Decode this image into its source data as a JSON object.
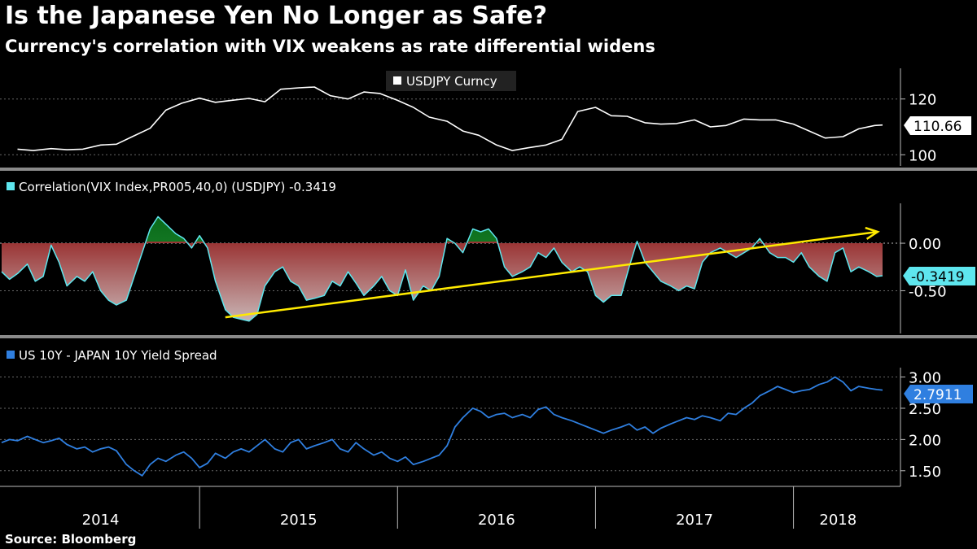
{
  "header": {
    "title": "Is the Japanese Yen No Longer as Safe?",
    "subtitle": "Currency's correlation with VIX weakens as rate differential widens"
  },
  "footer": {
    "source": "Source: Bloomberg"
  },
  "colors": {
    "background": "#000000",
    "usdjpy_line": "#ffffff",
    "correlation_line": "#5ee6ee",
    "correlation_neg_fill": "#8b0a0a",
    "correlation_pos_fill": "#1e8a2a",
    "trend_arrow": "#ffea00",
    "spread_line": "#2f7fe0",
    "grid": "#666666"
  },
  "chart_data": [
    {
      "type": "line",
      "panel": "top",
      "legend": "USDJPY Curncy",
      "last_value_label": "110.66",
      "y_ticks": [
        "120",
        "100"
      ],
      "ylim": [
        96,
        131
      ],
      "x_ticks": [
        "2014",
        "2015",
        "2016",
        "2017",
        "2018"
      ],
      "series": [
        {
          "name": "USDJPY Curncy",
          "x": [
            2014.08,
            2014.16,
            2014.25,
            2014.33,
            2014.41,
            2014.5,
            2014.58,
            2014.66,
            2014.75,
            2014.83,
            2014.91,
            2015.0,
            2015.08,
            2015.16,
            2015.25,
            2015.33,
            2015.41,
            2015.5,
            2015.58,
            2015.66,
            2015.75,
            2015.83,
            2015.91,
            2016.0,
            2016.08,
            2016.16,
            2016.25,
            2016.33,
            2016.41,
            2016.5,
            2016.58,
            2016.66,
            2016.75,
            2016.83,
            2016.91,
            2017.0,
            2017.08,
            2017.16,
            2017.25,
            2017.33,
            2017.41,
            2017.5,
            2017.58,
            2017.66,
            2017.75,
            2017.83,
            2017.91,
            2018.0,
            2018.08,
            2018.16,
            2018.25,
            2018.33,
            2018.41,
            2018.45
          ],
          "y": [
            102.0,
            101.5,
            102.2,
            101.8,
            102.0,
            103.5,
            103.8,
            106.5,
            109.5,
            116.0,
            118.5,
            120.3,
            118.8,
            119.5,
            120.2,
            119.0,
            123.5,
            124.0,
            124.3,
            121.2,
            120.0,
            122.5,
            122.0,
            119.5,
            117.0,
            113.5,
            112.0,
            108.5,
            107.0,
            103.5,
            101.5,
            102.5,
            103.5,
            105.5,
            115.5,
            117.0,
            114.0,
            113.8,
            111.5,
            111.0,
            111.2,
            112.5,
            110.0,
            110.5,
            112.8,
            112.5,
            112.5,
            111.0,
            108.5,
            106.0,
            106.5,
            109.3,
            110.5,
            110.66
          ]
        }
      ]
    },
    {
      "type": "area",
      "panel": "middle",
      "legend": "Correlation(VIX Index,PR005,40,0) (USDJPY) -0.3419",
      "last_value_label": "-0.3419",
      "y_ticks": [
        "0.00",
        "-0.50"
      ],
      "ylim": [
        -0.95,
        0.42
      ],
      "series": [
        {
          "name": "Correlation(VIX Index,PR005,40,0) (USDJPY)",
          "x": [
            2014.0,
            2014.04,
            2014.08,
            2014.13,
            2014.17,
            2014.21,
            2014.25,
            2014.29,
            2014.33,
            2014.38,
            2014.42,
            2014.46,
            2014.5,
            2014.54,
            2014.58,
            2014.63,
            2014.67,
            2014.71,
            2014.75,
            2014.79,
            2014.83,
            2014.88,
            2014.92,
            2014.96,
            2015.0,
            2015.04,
            2015.08,
            2015.13,
            2015.17,
            2015.21,
            2015.25,
            2015.29,
            2015.33,
            2015.38,
            2015.42,
            2015.46,
            2015.5,
            2015.54,
            2015.58,
            2015.63,
            2015.67,
            2015.71,
            2015.75,
            2015.79,
            2015.83,
            2015.88,
            2015.92,
            2015.96,
            2016.0,
            2016.04,
            2016.08,
            2016.13,
            2016.17,
            2016.21,
            2016.25,
            2016.29,
            2016.33,
            2016.38,
            2016.42,
            2016.46,
            2016.5,
            2016.54,
            2016.58,
            2016.63,
            2016.67,
            2016.71,
            2016.75,
            2016.79,
            2016.83,
            2016.88,
            2016.92,
            2016.96,
            2017.0,
            2017.04,
            2017.08,
            2017.13,
            2017.17,
            2017.21,
            2017.25,
            2017.29,
            2017.33,
            2017.38,
            2017.42,
            2017.46,
            2017.5,
            2017.54,
            2017.58,
            2017.63,
            2017.67,
            2017.71,
            2017.75,
            2017.79,
            2017.83,
            2017.88,
            2017.92,
            2017.96,
            2018.0,
            2018.04,
            2018.08,
            2018.13,
            2018.17,
            2018.21,
            2018.25,
            2018.29,
            2018.33,
            2018.38,
            2018.42,
            2018.45
          ],
          "y": [
            -0.3,
            -0.38,
            -0.32,
            -0.22,
            -0.4,
            -0.35,
            -0.02,
            -0.2,
            -0.45,
            -0.35,
            -0.4,
            -0.3,
            -0.5,
            -0.6,
            -0.65,
            -0.6,
            -0.35,
            -0.1,
            0.15,
            0.28,
            0.2,
            0.1,
            0.05,
            -0.05,
            0.08,
            -0.05,
            -0.4,
            -0.7,
            -0.78,
            -0.8,
            -0.82,
            -0.75,
            -0.45,
            -0.3,
            -0.25,
            -0.4,
            -0.45,
            -0.6,
            -0.58,
            -0.55,
            -0.4,
            -0.45,
            -0.3,
            -0.42,
            -0.55,
            -0.45,
            -0.35,
            -0.5,
            -0.55,
            -0.28,
            -0.6,
            -0.45,
            -0.5,
            -0.35,
            0.05,
            0.0,
            -0.1,
            0.15,
            0.12,
            0.15,
            0.05,
            -0.25,
            -0.35,
            -0.3,
            -0.25,
            -0.1,
            -0.15,
            -0.05,
            -0.2,
            -0.3,
            -0.25,
            -0.3,
            -0.55,
            -0.62,
            -0.55,
            -0.55,
            -0.25,
            0.02,
            -0.2,
            -0.3,
            -0.4,
            -0.45,
            -0.5,
            -0.45,
            -0.48,
            -0.2,
            -0.1,
            -0.05,
            -0.1,
            -0.15,
            -0.1,
            -0.05,
            0.05,
            -0.1,
            -0.15,
            -0.15,
            -0.2,
            -0.1,
            -0.25,
            -0.35,
            -0.4,
            -0.1,
            -0.05,
            -0.3,
            -0.25,
            -0.3,
            -0.35,
            -0.3419
          ]
        }
      ],
      "annotation": {
        "type": "arrow",
        "label": "",
        "from": [
          2015.13,
          -0.78
        ],
        "to": [
          2018.45,
          0.12
        ]
      }
    },
    {
      "type": "line",
      "panel": "bottom",
      "legend": "US 10Y - JAPAN 10Y Yield Spread",
      "last_value_label": "2.7911",
      "y_ticks": [
        "3.00",
        "2.50",
        "2.00",
        "1.50"
      ],
      "ylim": [
        1.25,
        3.15
      ],
      "series": [
        {
          "name": "US 10Y - JAPAN 10Y Yield Spread",
          "x": [
            2014.0,
            2014.04,
            2014.08,
            2014.13,
            2014.17,
            2014.21,
            2014.25,
            2014.29,
            2014.33,
            2014.38,
            2014.42,
            2014.46,
            2014.5,
            2014.54,
            2014.58,
            2014.63,
            2014.67,
            2014.71,
            2014.75,
            2014.79,
            2014.83,
            2014.88,
            2014.92,
            2014.96,
            2015.0,
            2015.04,
            2015.08,
            2015.13,
            2015.17,
            2015.21,
            2015.25,
            2015.29,
            2015.33,
            2015.38,
            2015.42,
            2015.46,
            2015.5,
            2015.54,
            2015.58,
            2015.63,
            2015.67,
            2015.71,
            2015.75,
            2015.79,
            2015.83,
            2015.88,
            2015.92,
            2015.96,
            2016.0,
            2016.04,
            2016.08,
            2016.13,
            2016.17,
            2016.21,
            2016.25,
            2016.29,
            2016.33,
            2016.38,
            2016.42,
            2016.46,
            2016.5,
            2016.54,
            2016.58,
            2016.63,
            2016.67,
            2016.71,
            2016.75,
            2016.79,
            2016.83,
            2016.88,
            2016.92,
            2016.96,
            2017.0,
            2017.04,
            2017.08,
            2017.13,
            2017.17,
            2017.21,
            2017.25,
            2017.29,
            2017.33,
            2017.38,
            2017.42,
            2017.46,
            2017.5,
            2017.54,
            2017.58,
            2017.63,
            2017.67,
            2017.71,
            2017.75,
            2017.79,
            2017.83,
            2017.88,
            2017.92,
            2017.96,
            2018.0,
            2018.04,
            2018.08,
            2018.13,
            2018.17,
            2018.21,
            2018.25,
            2018.29,
            2018.33,
            2018.38,
            2018.42,
            2018.45
          ],
          "y": [
            1.95,
            2.0,
            1.98,
            2.05,
            2.0,
            1.95,
            1.98,
            2.02,
            1.92,
            1.85,
            1.88,
            1.8,
            1.85,
            1.88,
            1.82,
            1.6,
            1.5,
            1.42,
            1.6,
            1.7,
            1.65,
            1.75,
            1.8,
            1.7,
            1.55,
            1.62,
            1.78,
            1.7,
            1.8,
            1.85,
            1.8,
            1.9,
            2.0,
            1.85,
            1.8,
            1.95,
            2.0,
            1.85,
            1.9,
            1.95,
            2.0,
            1.85,
            1.8,
            1.95,
            1.85,
            1.75,
            1.8,
            1.7,
            1.65,
            1.72,
            1.6,
            1.65,
            1.7,
            1.75,
            1.9,
            2.2,
            2.35,
            2.5,
            2.45,
            2.35,
            2.4,
            2.42,
            2.35,
            2.4,
            2.35,
            2.48,
            2.52,
            2.4,
            2.35,
            2.3,
            2.25,
            2.2,
            2.15,
            2.1,
            2.15,
            2.2,
            2.25,
            2.15,
            2.2,
            2.1,
            2.18,
            2.25,
            2.3,
            2.35,
            2.32,
            2.38,
            2.35,
            2.3,
            2.42,
            2.4,
            2.5,
            2.58,
            2.7,
            2.78,
            2.85,
            2.8,
            2.75,
            2.78,
            2.8,
            2.88,
            2.92,
            3.0,
            2.92,
            2.78,
            2.85,
            2.82,
            2.8,
            2.7911
          ]
        }
      ]
    }
  ]
}
